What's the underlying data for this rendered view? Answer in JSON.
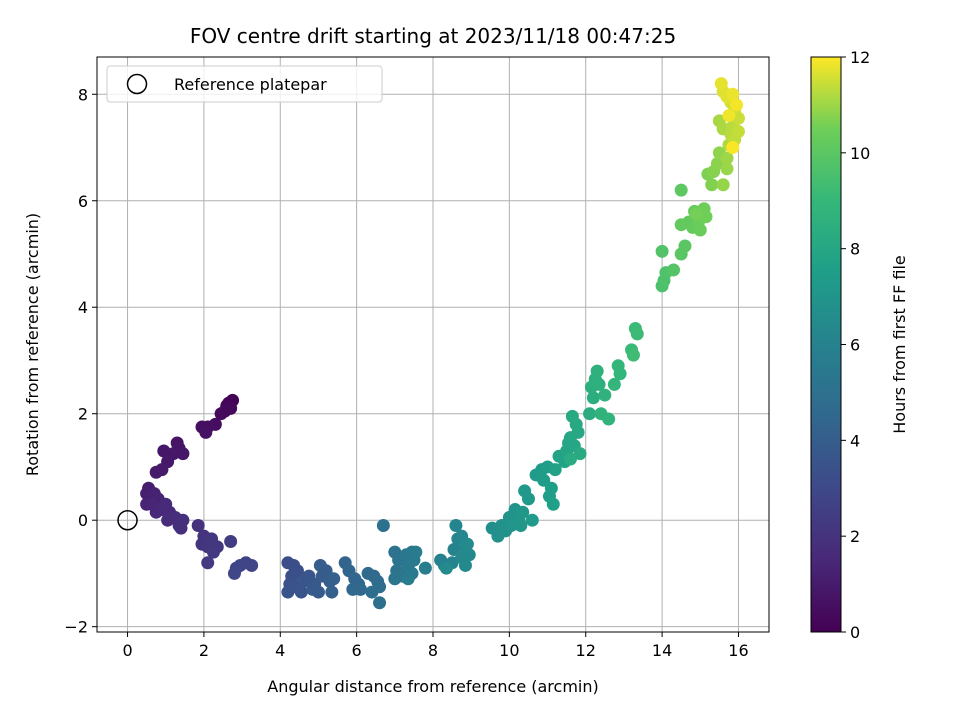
{
  "chart_data": {
    "type": "scatter",
    "title": "FOV centre drift starting at 2023/11/18 00:47:25",
    "xlabel": "Angular distance from reference (arcmin)",
    "ylabel": "Rotation from reference (arcmin)",
    "xlim": [
      -0.8,
      16.8
    ],
    "ylim": [
      -2.1,
      8.7
    ],
    "xticks": [
      0,
      2,
      4,
      6,
      8,
      10,
      12,
      14,
      16
    ],
    "yticks": [
      -2,
      0,
      2,
      4,
      6,
      8
    ],
    "grid": true,
    "legend": {
      "placement": "top-left",
      "entries": [
        "Reference platepar"
      ]
    },
    "reference": {
      "x": 0,
      "y": 0,
      "label": "Reference platepar"
    },
    "colorbar": {
      "label": "Hours from first FF file",
      "range": [
        0,
        12
      ],
      "ticks": [
        0,
        2,
        4,
        6,
        8,
        10,
        12
      ],
      "colormap": "viridis"
    },
    "points": [
      {
        "x": 2.75,
        "y": 2.25,
        "t": 0.1
      },
      {
        "x": 2.65,
        "y": 2.2,
        "t": 0.15
      },
      {
        "x": 2.6,
        "y": 2.15,
        "t": 0.2
      },
      {
        "x": 2.7,
        "y": 2.1,
        "t": 0.25
      },
      {
        "x": 2.55,
        "y": 2.05,
        "t": 0.3
      },
      {
        "x": 2.45,
        "y": 2.0,
        "t": 0.35
      },
      {
        "x": 2.3,
        "y": 1.8,
        "t": 0.45
      },
      {
        "x": 2.1,
        "y": 1.75,
        "t": 0.5
      },
      {
        "x": 1.95,
        "y": 1.75,
        "t": 0.55
      },
      {
        "x": 2.05,
        "y": 1.65,
        "t": 0.6
      },
      {
        "x": 1.3,
        "y": 1.45,
        "t": 0.7
      },
      {
        "x": 1.35,
        "y": 1.35,
        "t": 0.75
      },
      {
        "x": 1.2,
        "y": 1.25,
        "t": 0.8
      },
      {
        "x": 1.45,
        "y": 1.25,
        "t": 0.82
      },
      {
        "x": 0.95,
        "y": 1.3,
        "t": 0.85
      },
      {
        "x": 1.05,
        "y": 1.1,
        "t": 0.9
      },
      {
        "x": 0.9,
        "y": 0.95,
        "t": 0.95
      },
      {
        "x": 0.75,
        "y": 0.9,
        "t": 1.0
      },
      {
        "x": 0.55,
        "y": 0.6,
        "t": 1.1
      },
      {
        "x": 0.5,
        "y": 0.5,
        "t": 1.15
      },
      {
        "x": 0.6,
        "y": 0.45,
        "t": 1.2
      },
      {
        "x": 0.7,
        "y": 0.5,
        "t": 1.25
      },
      {
        "x": 0.8,
        "y": 0.4,
        "t": 1.3
      },
      {
        "x": 0.5,
        "y": 0.3,
        "t": 1.35
      },
      {
        "x": 0.65,
        "y": 0.3,
        "t": 1.4
      },
      {
        "x": 0.75,
        "y": 0.15,
        "t": 1.45
      },
      {
        "x": 0.9,
        "y": 0.2,
        "t": 1.5
      },
      {
        "x": 1.0,
        "y": 0.3,
        "t": 1.6
      },
      {
        "x": 1.1,
        "y": 0.15,
        "t": 1.65
      },
      {
        "x": 1.05,
        "y": 0.0,
        "t": 1.7
      },
      {
        "x": 1.25,
        "y": 0.05,
        "t": 1.75
      },
      {
        "x": 1.35,
        "y": -0.1,
        "t": 1.8
      },
      {
        "x": 1.45,
        "y": 0.0,
        "t": 1.82
      },
      {
        "x": 1.4,
        "y": -0.15,
        "t": 1.85
      },
      {
        "x": 1.85,
        "y": -0.1,
        "t": 1.95
      },
      {
        "x": 2.0,
        "y": -0.3,
        "t": 2.0
      },
      {
        "x": 1.95,
        "y": -0.45,
        "t": 2.05
      },
      {
        "x": 2.1,
        "y": -0.5,
        "t": 2.1
      },
      {
        "x": 2.2,
        "y": -0.35,
        "t": 2.15
      },
      {
        "x": 2.35,
        "y": -0.5,
        "t": 2.2
      },
      {
        "x": 2.25,
        "y": -0.6,
        "t": 2.25
      },
      {
        "x": 2.1,
        "y": -0.8,
        "t": 2.3
      },
      {
        "x": 2.7,
        "y": -0.4,
        "t": 2.4
      },
      {
        "x": 2.85,
        "y": -0.9,
        "t": 2.6
      },
      {
        "x": 3.1,
        "y": -0.8,
        "t": 2.7
      },
      {
        "x": 3.25,
        "y": -0.85,
        "t": 2.8
      },
      {
        "x": 2.95,
        "y": -0.85,
        "t": 2.85
      },
      {
        "x": 2.8,
        "y": -1.0,
        "t": 2.9
      },
      {
        "x": 4.2,
        "y": -0.8,
        "t": 3.2
      },
      {
        "x": 4.35,
        "y": -0.85,
        "t": 3.25
      },
      {
        "x": 4.3,
        "y": -1.05,
        "t": 3.3
      },
      {
        "x": 4.45,
        "y": -0.95,
        "t": 3.35
      },
      {
        "x": 4.25,
        "y": -1.2,
        "t": 3.4
      },
      {
        "x": 4.4,
        "y": -1.25,
        "t": 3.45
      },
      {
        "x": 4.2,
        "y": -1.35,
        "t": 3.5
      },
      {
        "x": 4.55,
        "y": -1.35,
        "t": 3.55
      },
      {
        "x": 4.6,
        "y": -1.15,
        "t": 3.6
      },
      {
        "x": 4.75,
        "y": -1.05,
        "t": 3.65
      },
      {
        "x": 4.9,
        "y": -1.2,
        "t": 3.7
      },
      {
        "x": 4.85,
        "y": -1.3,
        "t": 3.75
      },
      {
        "x": 5.0,
        "y": -1.35,
        "t": 3.8
      },
      {
        "x": 5.1,
        "y": -1.05,
        "t": 3.85
      },
      {
        "x": 5.2,
        "y": -0.95,
        "t": 3.9
      },
      {
        "x": 5.05,
        "y": -0.85,
        "t": 3.95
      },
      {
        "x": 5.3,
        "y": -1.15,
        "t": 4.0
      },
      {
        "x": 5.4,
        "y": -1.1,
        "t": 4.05
      },
      {
        "x": 5.35,
        "y": -1.35,
        "t": 4.1
      },
      {
        "x": 5.7,
        "y": -0.8,
        "t": 4.3
      },
      {
        "x": 5.8,
        "y": -0.95,
        "t": 4.35
      },
      {
        "x": 5.95,
        "y": -1.1,
        "t": 4.4
      },
      {
        "x": 6.05,
        "y": -1.2,
        "t": 4.45
      },
      {
        "x": 5.9,
        "y": -1.3,
        "t": 4.5
      },
      {
        "x": 6.1,
        "y": -1.3,
        "t": 4.55
      },
      {
        "x": 6.3,
        "y": -1.0,
        "t": 4.65
      },
      {
        "x": 6.45,
        "y": -1.05,
        "t": 4.7
      },
      {
        "x": 6.55,
        "y": -1.15,
        "t": 4.75
      },
      {
        "x": 6.6,
        "y": -1.25,
        "t": 4.8
      },
      {
        "x": 6.4,
        "y": -1.35,
        "t": 4.85
      },
      {
        "x": 6.6,
        "y": -1.55,
        "t": 4.9
      },
      {
        "x": 6.7,
        "y": -0.1,
        "t": 5.0
      },
      {
        "x": 7.0,
        "y": -0.6,
        "t": 5.1
      },
      {
        "x": 7.1,
        "y": -0.75,
        "t": 5.15
      },
      {
        "x": 7.05,
        "y": -0.95,
        "t": 5.2
      },
      {
        "x": 7.2,
        "y": -1.05,
        "t": 5.25
      },
      {
        "x": 7.0,
        "y": -1.1,
        "t": 5.3
      },
      {
        "x": 7.3,
        "y": -0.65,
        "t": 5.35
      },
      {
        "x": 7.35,
        "y": -0.85,
        "t": 5.4
      },
      {
        "x": 7.45,
        "y": -0.6,
        "t": 5.45
      },
      {
        "x": 7.5,
        "y": -0.75,
        "t": 5.5
      },
      {
        "x": 7.45,
        "y": -1.0,
        "t": 5.55
      },
      {
        "x": 7.55,
        "y": -0.6,
        "t": 5.6
      },
      {
        "x": 7.35,
        "y": -1.1,
        "t": 5.62
      },
      {
        "x": 7.8,
        "y": -0.9,
        "t": 5.7
      },
      {
        "x": 8.2,
        "y": -0.75,
        "t": 5.9
      },
      {
        "x": 8.3,
        "y": -0.85,
        "t": 5.95
      },
      {
        "x": 8.5,
        "y": -0.8,
        "t": 6.0
      },
      {
        "x": 8.55,
        "y": -0.55,
        "t": 6.05
      },
      {
        "x": 8.65,
        "y": -0.35,
        "t": 6.1
      },
      {
        "x": 8.6,
        "y": -0.1,
        "t": 6.15
      },
      {
        "x": 8.75,
        "y": -0.3,
        "t": 6.2
      },
      {
        "x": 8.85,
        "y": -0.5,
        "t": 6.25
      },
      {
        "x": 8.75,
        "y": -0.7,
        "t": 6.3
      },
      {
        "x": 8.85,
        "y": -0.85,
        "t": 6.35
      },
      {
        "x": 8.95,
        "y": -0.65,
        "t": 6.4
      },
      {
        "x": 8.9,
        "y": -0.45,
        "t": 6.42
      },
      {
        "x": 8.35,
        "y": -0.9,
        "t": 6.45
      },
      {
        "x": 9.55,
        "y": -0.15,
        "t": 6.7
      },
      {
        "x": 9.7,
        "y": -0.3,
        "t": 6.75
      },
      {
        "x": 9.8,
        "y": -0.1,
        "t": 6.8
      },
      {
        "x": 9.9,
        "y": -0.2,
        "t": 6.85
      },
      {
        "x": 10.0,
        "y": 0.05,
        "t": 6.9
      },
      {
        "x": 10.05,
        "y": -0.1,
        "t": 6.95
      },
      {
        "x": 10.15,
        "y": 0.2,
        "t": 7.0
      },
      {
        "x": 10.25,
        "y": 0.0,
        "t": 7.05
      },
      {
        "x": 10.35,
        "y": 0.15,
        "t": 7.1
      },
      {
        "x": 10.3,
        "y": -0.1,
        "t": 7.12
      },
      {
        "x": 10.5,
        "y": 0.4,
        "t": 7.2
      },
      {
        "x": 10.4,
        "y": 0.55,
        "t": 7.25
      },
      {
        "x": 10.6,
        "y": 0.0,
        "t": 7.3
      },
      {
        "x": 10.7,
        "y": 0.85,
        "t": 7.35
      },
      {
        "x": 10.85,
        "y": 0.95,
        "t": 7.4
      },
      {
        "x": 10.9,
        "y": 0.75,
        "t": 7.45
      },
      {
        "x": 11.0,
        "y": 1.0,
        "t": 7.5
      },
      {
        "x": 11.1,
        "y": 0.6,
        "t": 7.55
      },
      {
        "x": 11.05,
        "y": 0.45,
        "t": 7.58
      },
      {
        "x": 11.15,
        "y": 0.3,
        "t": 7.6
      },
      {
        "x": 11.2,
        "y": 0.95,
        "t": 7.7
      },
      {
        "x": 11.3,
        "y": 1.2,
        "t": 7.75
      },
      {
        "x": 11.45,
        "y": 1.1,
        "t": 7.8
      },
      {
        "x": 11.5,
        "y": 1.3,
        "t": 7.85
      },
      {
        "x": 11.55,
        "y": 1.45,
        "t": 7.9
      },
      {
        "x": 11.6,
        "y": 1.55,
        "t": 7.95
      },
      {
        "x": 11.7,
        "y": 1.4,
        "t": 8.0
      },
      {
        "x": 11.8,
        "y": 1.65,
        "t": 8.05
      },
      {
        "x": 11.75,
        "y": 1.8,
        "t": 8.1
      },
      {
        "x": 11.65,
        "y": 1.95,
        "t": 8.15
      },
      {
        "x": 11.85,
        "y": 1.25,
        "t": 8.2
      },
      {
        "x": 11.6,
        "y": 1.15,
        "t": 8.25
      },
      {
        "x": 12.1,
        "y": 2.0,
        "t": 8.35
      },
      {
        "x": 12.2,
        "y": 2.3,
        "t": 8.4
      },
      {
        "x": 12.15,
        "y": 2.5,
        "t": 8.45
      },
      {
        "x": 12.25,
        "y": 2.65,
        "t": 8.5
      },
      {
        "x": 12.35,
        "y": 2.55,
        "t": 8.55
      },
      {
        "x": 12.3,
        "y": 2.8,
        "t": 8.6
      },
      {
        "x": 12.5,
        "y": 2.35,
        "t": 8.65
      },
      {
        "x": 12.4,
        "y": 2.0,
        "t": 8.7
      },
      {
        "x": 12.6,
        "y": 1.9,
        "t": 8.75
      },
      {
        "x": 12.75,
        "y": 2.55,
        "t": 8.85
      },
      {
        "x": 12.85,
        "y": 2.9,
        "t": 8.9
      },
      {
        "x": 12.9,
        "y": 2.75,
        "t": 8.95
      },
      {
        "x": 13.2,
        "y": 3.2,
        "t": 9.1
      },
      {
        "x": 13.3,
        "y": 3.6,
        "t": 9.15
      },
      {
        "x": 13.35,
        "y": 3.5,
        "t": 9.2
      },
      {
        "x": 13.25,
        "y": 3.1,
        "t": 9.25
      },
      {
        "x": 14.0,
        "y": 4.4,
        "t": 9.6
      },
      {
        "x": 14.05,
        "y": 4.5,
        "t": 9.65
      },
      {
        "x": 14.1,
        "y": 4.65,
        "t": 9.7
      },
      {
        "x": 14.0,
        "y": 5.05,
        "t": 9.75
      },
      {
        "x": 14.3,
        "y": 4.7,
        "t": 9.85
      },
      {
        "x": 14.5,
        "y": 5.0,
        "t": 9.95
      },
      {
        "x": 14.6,
        "y": 5.15,
        "t": 10.0
      },
      {
        "x": 14.5,
        "y": 6.2,
        "t": 10.05
      },
      {
        "x": 14.5,
        "y": 5.55,
        "t": 10.15
      },
      {
        "x": 14.7,
        "y": 5.6,
        "t": 10.2
      },
      {
        "x": 14.8,
        "y": 5.5,
        "t": 10.25
      },
      {
        "x": 14.85,
        "y": 5.8,
        "t": 10.3
      },
      {
        "x": 14.95,
        "y": 5.6,
        "t": 10.35
      },
      {
        "x": 15.0,
        "y": 5.45,
        "t": 10.4
      },
      {
        "x": 15.1,
        "y": 5.85,
        "t": 10.45
      },
      {
        "x": 15.15,
        "y": 5.7,
        "t": 10.5
      },
      {
        "x": 14.9,
        "y": 5.75,
        "t": 10.55
      },
      {
        "x": 15.2,
        "y": 6.5,
        "t": 10.65
      },
      {
        "x": 15.3,
        "y": 6.3,
        "t": 10.7
      },
      {
        "x": 15.35,
        "y": 6.55,
        "t": 10.75
      },
      {
        "x": 15.45,
        "y": 6.7,
        "t": 10.8
      },
      {
        "x": 15.5,
        "y": 6.9,
        "t": 10.85
      },
      {
        "x": 15.6,
        "y": 6.3,
        "t": 10.9
      },
      {
        "x": 15.7,
        "y": 6.6,
        "t": 10.95
      },
      {
        "x": 15.7,
        "y": 6.8,
        "t": 11.0
      },
      {
        "x": 15.5,
        "y": 7.5,
        "t": 11.1
      },
      {
        "x": 15.6,
        "y": 7.35,
        "t": 11.15
      },
      {
        "x": 15.75,
        "y": 7.05,
        "t": 11.2
      },
      {
        "x": 15.8,
        "y": 7.25,
        "t": 11.25
      },
      {
        "x": 15.85,
        "y": 7.4,
        "t": 11.3
      },
      {
        "x": 15.9,
        "y": 7.15,
        "t": 11.35
      },
      {
        "x": 16.0,
        "y": 7.3,
        "t": 11.4
      },
      {
        "x": 16.0,
        "y": 7.55,
        "t": 11.45
      },
      {
        "x": 15.9,
        "y": 7.7,
        "t": 11.5
      },
      {
        "x": 15.8,
        "y": 7.85,
        "t": 11.55
      },
      {
        "x": 15.6,
        "y": 8.05,
        "t": 11.65
      },
      {
        "x": 15.7,
        "y": 7.95,
        "t": 11.7
      },
      {
        "x": 15.55,
        "y": 8.2,
        "t": 11.75
      },
      {
        "x": 15.85,
        "y": 8.0,
        "t": 11.8
      },
      {
        "x": 15.75,
        "y": 7.6,
        "t": 11.85
      },
      {
        "x": 15.95,
        "y": 7.8,
        "t": 11.9
      },
      {
        "x": 15.85,
        "y": 7.0,
        "t": 11.95
      }
    ]
  }
}
